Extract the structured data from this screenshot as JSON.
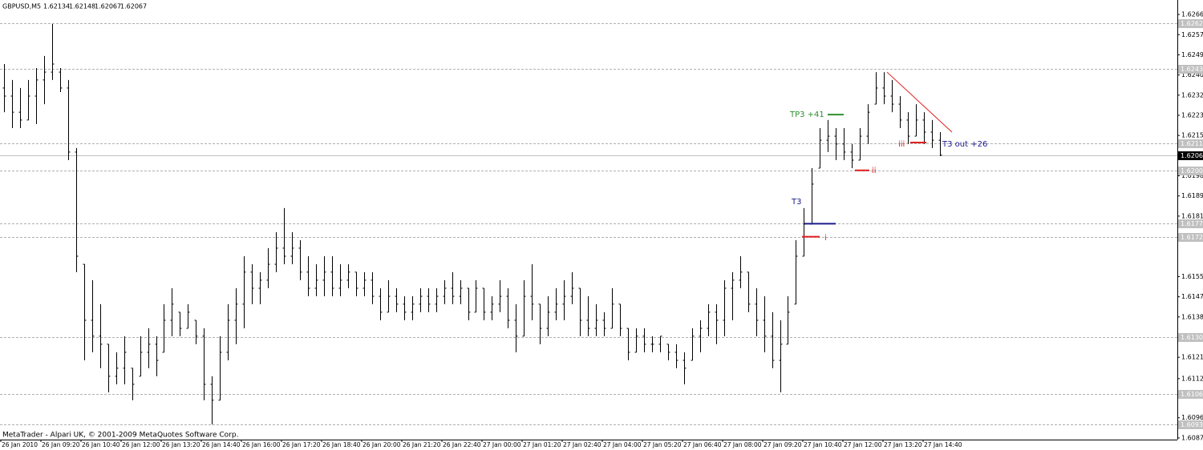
{
  "chart_data": {
    "type": "ohlc",
    "symbol": "GBPUSD,M5",
    "header_prices": [
      "1.62134",
      "1.62148",
      "1.62067",
      "1.62067"
    ],
    "footer": "MetaTrader - Alpari UK, © 2001-2009 MetaQuotes Software Corp.",
    "ylim": [
      1.60868,
      1.62721
    ],
    "yticks": [
      {
        "value": 1.6266,
        "label": "1.62660"
      },
      1.62575,
      {
        "value": 1.6249,
        "label": "1.62490"
      },
      1.62405,
      {
        "value": 1.6232,
        "label": "1.62320"
      },
      1.62235,
      {
        "value": 1.6215,
        "label": "1.62150"
      },
      {
        "value": 1.6198,
        "label": "1.61980"
      },
      1.61895,
      {
        "value": 1.6181,
        "label": "1.61810"
      },
      1.61555,
      {
        "value": 1.6147,
        "label": "1.61470"
      },
      1.61385,
      1.61215,
      1.61125,
      {
        "value": 1.6096,
        "label": "1.60960"
      },
      1.60875
    ],
    "levels": [
      1.62624,
      1.62431,
      1.62117,
      1.62003,
      1.61778,
      1.61723,
      1.61301,
      1.61061,
      1.60933
    ],
    "current_price": 1.62067,
    "x_labels": [
      "26 Jan 2010",
      "26 Jan 09:20",
      "26 Jan 10:40",
      "26 Jan 12:00",
      "26 Jan 13:20",
      "26 Jan 14:40",
      "26 Jan 16:00",
      "26 Jan 17:20",
      "26 Jan 18:40",
      "26 Jan 20:00",
      "26 Jan 21:20",
      "26 Jan 22:40",
      "27 Jan 00:00",
      "27 Jan 01:20",
      "27 Jan 02:40",
      "27 Jan 04:00",
      "27 Jan 05:20",
      "27 Jan 06:40",
      "27 Jan 08:00",
      "27 Jan 09:20",
      "27 Jan 10:40",
      "27 Jan 12:00",
      "27 Jan 13:20",
      "27 Jan 14:40"
    ],
    "bar_color": "#000000",
    "bars": [
      [
        1.6235,
        1.62451,
        1.62248,
        1.62316
      ],
      [
        1.62316,
        1.62384,
        1.62181,
        1.62248
      ],
      [
        1.62248,
        1.6235,
        1.62181,
        1.62215
      ],
      [
        1.62215,
        1.62384,
        1.62215,
        1.62316
      ],
      [
        1.62316,
        1.62434,
        1.62198,
        1.62384
      ],
      [
        1.62384,
        1.62485,
        1.62282,
        1.62417
      ],
      [
        1.62417,
        1.6262,
        1.62384,
        1.62451
      ],
      [
        1.62417,
        1.62434,
        1.62333,
        1.6235
      ],
      [
        1.6235,
        1.62384,
        1.62046,
        1.6208
      ],
      [
        1.6208,
        1.62097,
        1.61574,
        1.61641
      ],
      [
        1.61607,
        1.61607,
        1.61202,
        1.61371
      ],
      [
        1.61371,
        1.6154,
        1.61236,
        1.61304
      ],
      [
        1.61304,
        1.61439,
        1.61169,
        1.6127
      ],
      [
        1.6127,
        1.6127,
        1.61067,
        1.61135
      ],
      [
        1.61135,
        1.61236,
        1.61101,
        1.61169
      ],
      [
        1.61169,
        1.61304,
        1.61101,
        1.61236
      ],
      [
        1.61169,
        1.61169,
        1.61034,
        1.61101
      ],
      [
        1.61135,
        1.61304,
        1.61135,
        1.61236
      ],
      [
        1.61236,
        1.61337,
        1.61169,
        1.6127
      ],
      [
        1.6127,
        1.61304,
        1.61135,
        1.61202
      ],
      [
        1.61236,
        1.61439,
        1.61236,
        1.61371
      ],
      [
        1.61371,
        1.61506,
        1.61304,
        1.61439
      ],
      [
        1.61405,
        1.61405,
        1.61304,
        1.61337
      ],
      [
        1.61337,
        1.61439,
        1.61337,
        1.61405
      ],
      [
        1.61371,
        1.61371,
        1.6127,
        1.61304
      ],
      [
        1.61304,
        1.61337,
        1.61034,
        1.61101
      ],
      [
        1.61101,
        1.61135,
        1.60932,
        1.61034
      ],
      [
        1.61034,
        1.61304,
        1.61034,
        1.61236
      ],
      [
        1.61236,
        1.61439,
        1.61202,
        1.61371
      ],
      [
        1.61371,
        1.61506,
        1.6127,
        1.61439
      ],
      [
        1.61439,
        1.61641,
        1.61337,
        1.61574
      ],
      [
        1.61574,
        1.61607,
        1.61439,
        1.61506
      ],
      [
        1.61506,
        1.61574,
        1.61439,
        1.6154
      ],
      [
        1.6154,
        1.61675,
        1.61506,
        1.61607
      ],
      [
        1.61607,
        1.61742,
        1.61574,
        1.61675
      ],
      [
        1.61675,
        1.61844,
        1.61607,
        1.61641
      ],
      [
        1.61641,
        1.61742,
        1.61607,
        1.61675
      ],
      [
        1.61675,
        1.61709,
        1.6154,
        1.61574
      ],
      [
        1.61574,
        1.61641,
        1.61472,
        1.61506
      ],
      [
        1.61506,
        1.61607,
        1.61472,
        1.6154
      ],
      [
        1.6154,
        1.61641,
        1.61472,
        1.61574
      ],
      [
        1.61574,
        1.61641,
        1.61472,
        1.61506
      ],
      [
        1.61506,
        1.61607,
        1.61472,
        1.6154
      ],
      [
        1.6154,
        1.61607,
        1.61506,
        1.61574
      ],
      [
        1.61574,
        1.61574,
        1.61472,
        1.61506
      ],
      [
        1.61506,
        1.61574,
        1.61472,
        1.6154
      ],
      [
        1.6154,
        1.61574,
        1.61439,
        1.61472
      ],
      [
        1.61472,
        1.61506,
        1.61371,
        1.61405
      ],
      [
        1.61405,
        1.6154,
        1.61405,
        1.61472
      ],
      [
        1.61472,
        1.61506,
        1.61405,
        1.61439
      ],
      [
        1.61439,
        1.61472,
        1.61371,
        1.61405
      ],
      [
        1.61405,
        1.61472,
        1.61371,
        1.61439
      ],
      [
        1.61439,
        1.61506,
        1.61405,
        1.61472
      ],
      [
        1.61472,
        1.61506,
        1.61405,
        1.61439
      ],
      [
        1.61439,
        1.61506,
        1.61405,
        1.61472
      ],
      [
        1.61472,
        1.6154,
        1.61439,
        1.61506
      ],
      [
        1.61506,
        1.61574,
        1.61439,
        1.61472
      ],
      [
        1.61472,
        1.6154,
        1.61439,
        1.61506
      ],
      [
        1.61506,
        1.61506,
        1.61371,
        1.61405
      ],
      [
        1.61405,
        1.6154,
        1.61405,
        1.61506
      ],
      [
        1.61506,
        1.61506,
        1.61371,
        1.61405
      ],
      [
        1.61405,
        1.61472,
        1.61371,
        1.61439
      ],
      [
        1.61439,
        1.6154,
        1.61405,
        1.61472
      ],
      [
        1.61472,
        1.61506,
        1.61337,
        1.61371
      ],
      [
        1.61371,
        1.61439,
        1.61236,
        1.61304
      ],
      [
        1.61304,
        1.6154,
        1.61304,
        1.61472
      ],
      [
        1.61472,
        1.61607,
        1.61371,
        1.61439
      ],
      [
        1.61439,
        1.61439,
        1.6127,
        1.61337
      ],
      [
        1.61337,
        1.61472,
        1.61304,
        1.61405
      ],
      [
        1.61405,
        1.61506,
        1.61371,
        1.61439
      ],
      [
        1.61439,
        1.6154,
        1.61371,
        1.61472
      ],
      [
        1.61472,
        1.61574,
        1.61439,
        1.61506
      ],
      [
        1.61506,
        1.61506,
        1.61304,
        1.61371
      ],
      [
        1.61371,
        1.61472,
        1.61304,
        1.61337
      ],
      [
        1.61337,
        1.61439,
        1.61304,
        1.61371
      ],
      [
        1.61371,
        1.61405,
        1.61304,
        1.61337
      ],
      [
        1.61337,
        1.61506,
        1.61337,
        1.61439
      ],
      [
        1.61439,
        1.61439,
        1.61304,
        1.61337
      ],
      [
        1.61337,
        1.61337,
        1.61202,
        1.61236
      ],
      [
        1.61236,
        1.61337,
        1.61236,
        1.61304
      ],
      [
        1.61304,
        1.61337,
        1.61236,
        1.6127
      ],
      [
        1.6127,
        1.61304,
        1.61236,
        1.6127
      ],
      [
        1.6127,
        1.61304,
        1.61236,
        1.61304
      ],
      [
        1.6127,
        1.6127,
        1.61202,
        1.61236
      ],
      [
        1.61236,
        1.6127,
        1.61169,
        1.61202
      ],
      [
        1.61202,
        1.61236,
        1.61101,
        1.61169
      ],
      [
        1.61202,
        1.61337,
        1.61202,
        1.61304
      ],
      [
        1.61304,
        1.61371,
        1.61236,
        1.61337
      ],
      [
        1.61337,
        1.61439,
        1.61304,
        1.61405
      ],
      [
        1.61405,
        1.61439,
        1.6127,
        1.61371
      ],
      [
        1.61371,
        1.6154,
        1.61304,
        1.61506
      ],
      [
        1.61506,
        1.61574,
        1.61371,
        1.6154
      ],
      [
        1.6154,
        1.61641,
        1.61506,
        1.61574
      ],
      [
        1.61574,
        1.61574,
        1.61405,
        1.61439
      ],
      [
        1.61439,
        1.61506,
        1.61304,
        1.61371
      ],
      [
        1.61371,
        1.61472,
        1.61236,
        1.61304
      ],
      [
        1.61304,
        1.61405,
        1.61169,
        1.61202
      ],
      [
        1.61202,
        1.61371,
        1.61067,
        1.6127
      ],
      [
        1.6127,
        1.61472,
        1.6127,
        1.61405
      ],
      [
        1.61439,
        1.61709,
        1.61439,
        1.61641
      ],
      [
        1.61641,
        1.61844,
        1.61641,
        1.61776
      ],
      [
        1.61776,
        1.62012,
        1.61776,
        1.61945
      ],
      [
        1.62012,
        1.62181,
        1.62012,
        1.6213
      ],
      [
        1.6213,
        1.62215,
        1.6208,
        1.62147
      ],
      [
        1.62147,
        1.62181,
        1.62046,
        1.62114
      ],
      [
        1.62114,
        1.62181,
        1.62046,
        1.6208
      ],
      [
        1.6208,
        1.62114,
        1.62012,
        1.62046
      ],
      [
        1.62046,
        1.62181,
        1.62046,
        1.62147
      ],
      [
        1.62147,
        1.62282,
        1.62114,
        1.62248
      ],
      [
        1.62282,
        1.62417,
        1.62282,
        1.6235
      ],
      [
        1.6235,
        1.62417,
        1.62282,
        1.62316
      ],
      [
        1.62316,
        1.62384,
        1.62248,
        1.62282
      ],
      [
        1.62282,
        1.62316,
        1.62181,
        1.62215
      ],
      [
        1.62215,
        1.62248,
        1.62114,
        1.62147
      ],
      [
        1.62147,
        1.62282,
        1.62147,
        1.62215
      ],
      [
        1.62215,
        1.62248,
        1.62114,
        1.62164
      ],
      [
        1.62164,
        1.62215,
        1.62097,
        1.6213
      ],
      [
        1.6213,
        1.62164,
        1.62063,
        1.62067
      ]
    ],
    "annotations": [
      {
        "text": "TP3 +41",
        "color": "#2f8f2f"
      },
      {
        "text": "T3 out +26",
        "color": "#1c1c8c"
      },
      {
        "text": "T3",
        "color": "#1c1c8c"
      },
      {
        "text": "i",
        "color": "#e02020"
      },
      {
        "text": "ii",
        "color": "#e02020"
      },
      {
        "text": "iii",
        "color": "#e02020"
      }
    ],
    "segments": [
      {
        "value": 1.62238,
        "color": "#2f8f2f"
      },
      {
        "value": 1.61778,
        "color": "#1c1c8c"
      },
      {
        "value": 1.61723,
        "color": "#e02020"
      },
      {
        "value": 1.62003,
        "color": "#e02020"
      },
      {
        "value": 1.6212,
        "color": "#e02020"
      }
    ],
    "trendline": {
      "values": [
        1.62417,
        1.62164
      ],
      "color": "#e02020"
    }
  }
}
